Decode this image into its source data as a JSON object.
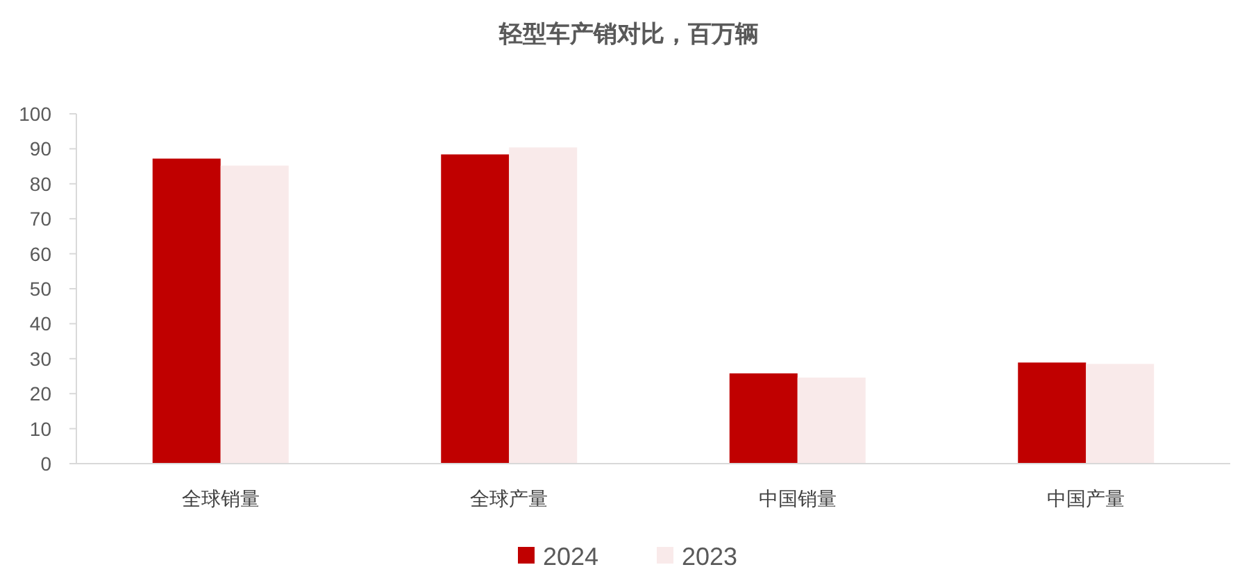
{
  "chart_data": {
    "type": "bar",
    "title": "轻型车产销对比，百万辆",
    "categories": [
      "全球销量",
      "全球产量",
      "中国销量",
      "中国产量"
    ],
    "series": [
      {
        "name": "2024",
        "color": "#c00000",
        "values": [
          87.2,
          88.4,
          25.8,
          28.9
        ]
      },
      {
        "name": "2023",
        "color": "#f9eaea",
        "values": [
          85.2,
          90.4,
          24.6,
          28.5
        ]
      }
    ],
    "ylim": [
      0,
      100
    ],
    "yticks": [
      0,
      10,
      20,
      30,
      40,
      50,
      60,
      70,
      80,
      90,
      100
    ],
    "grid": false,
    "legend": "bottom"
  }
}
